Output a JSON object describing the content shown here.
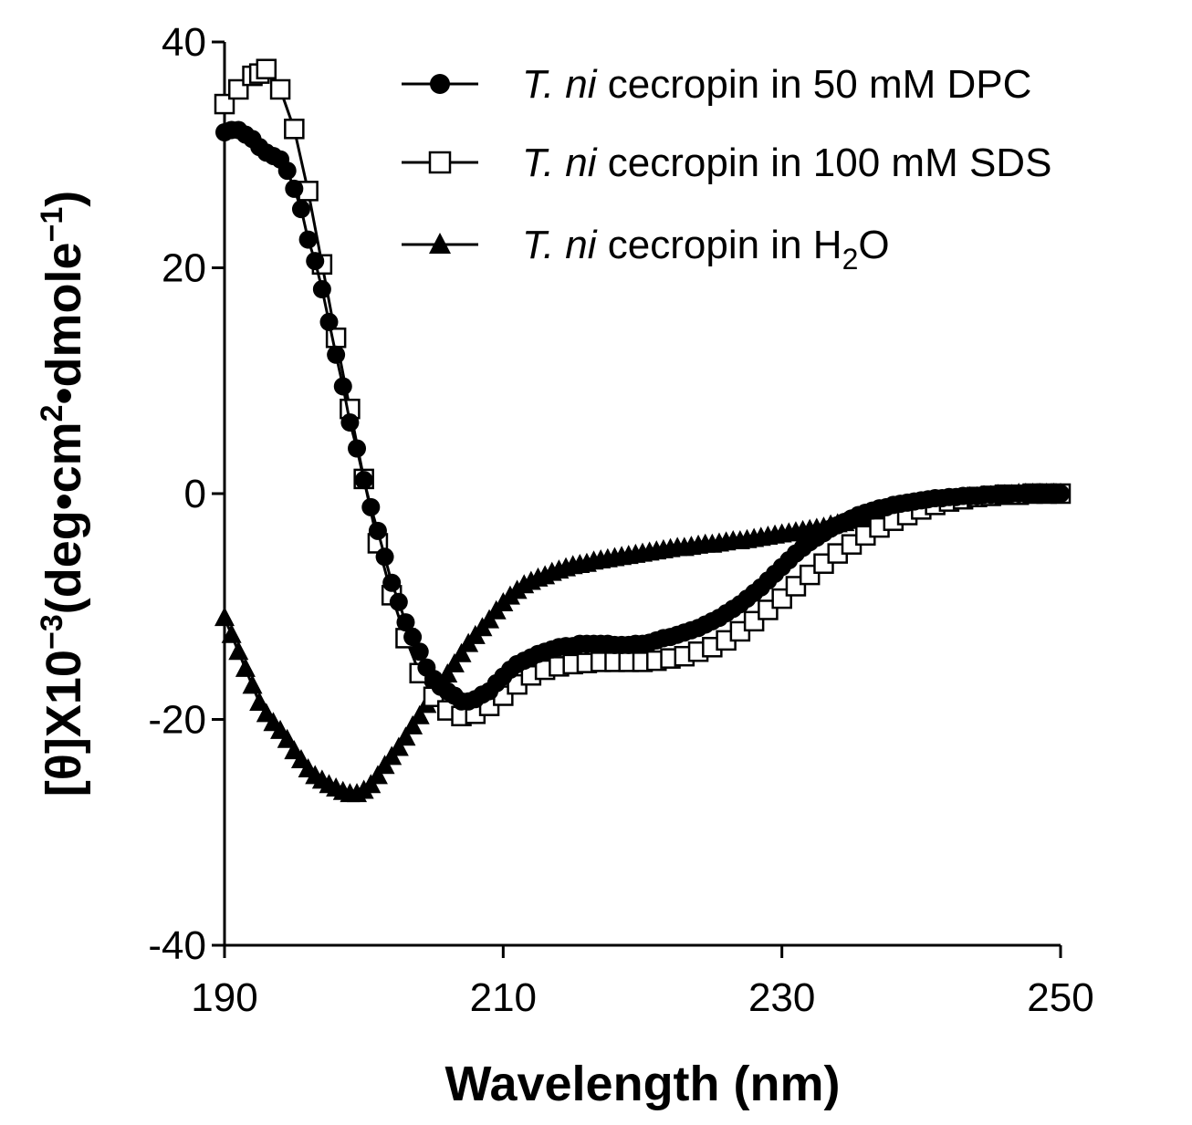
{
  "chart_data": {
    "type": "line",
    "title": "",
    "xlabel": "Wavelength (nm)",
    "ylabel_parts": {
      "prefix": "[θ]X10",
      "exp": "−3",
      "unit_open": "(deg•cm",
      "unit_exp": "2",
      "unit_mid": "•dmole",
      "unit_exp2": "−1",
      "unit_close": ")"
    },
    "xlim": [
      190,
      250
    ],
    "ylim": [
      -40,
      40
    ],
    "xticks": [
      190,
      210,
      230,
      250
    ],
    "xtick_labels": [
      "190",
      "210",
      "230",
      "250"
    ],
    "yticks": [
      -40,
      -20,
      0,
      20,
      40
    ],
    "ytick_labels": [
      "-40",
      "-20",
      "0",
      "20",
      "40"
    ],
    "grid": false,
    "legend_position": "top-right",
    "series": [
      {
        "name": "DPC",
        "legend_italic": "T. ni",
        "legend_text": " cecropin in 50 mM DPC",
        "marker": "filled-circle",
        "color": "#000000",
        "x": [
          190,
          190.5,
          191,
          191.5,
          192,
          192.5,
          193,
          193.5,
          194,
          194.5,
          195,
          195.5,
          196,
          196.5,
          197,
          197.5,
          198,
          198.5,
          199,
          199.5,
          200,
          200.5,
          201,
          201.5,
          202,
          202.5,
          203,
          203.5,
          204,
          204.5,
          205,
          205.5,
          206,
          206.5,
          207,
          207.5,
          208,
          208.5,
          209,
          209.5,
          210,
          210.5,
          211,
          211.5,
          212,
          212.5,
          213,
          213.5,
          214,
          214.5,
          215,
          215.5,
          216,
          216.5,
          217,
          217.5,
          218,
          218.5,
          219,
          219.5,
          220,
          220.5,
          221,
          221.5,
          222,
          222.5,
          223,
          223.5,
          224,
          224.5,
          225,
          225.5,
          226,
          226.5,
          227,
          227.5,
          228,
          228.5,
          229,
          229.5,
          230,
          230.5,
          231,
          231.5,
          232,
          232.5,
          233,
          233.5,
          234,
          234.5,
          235,
          235.5,
          236,
          236.5,
          237,
          237.5,
          238,
          238.5,
          239,
          239.5,
          240,
          240.5,
          241,
          241.5,
          242,
          242.5,
          243,
          243.5,
          244,
          244.5,
          245,
          245.5,
          246,
          246.5,
          247,
          247.5,
          248,
          248.5,
          249,
          249.5,
          250
        ],
        "y": [
          32,
          32.2,
          32.2,
          31.8,
          31.4,
          30.7,
          30.2,
          29.9,
          29.6,
          28.6,
          27,
          25.2,
          22.5,
          20.6,
          18.1,
          15.2,
          12.3,
          9.5,
          6.3,
          4,
          1.2,
          -1.2,
          -3.3,
          -5.6,
          -7.9,
          -9.6,
          -11.4,
          -12.7,
          -14,
          -15.4,
          -16.4,
          -17.1,
          -17.5,
          -17.9,
          -18.4,
          -18.4,
          -18.2,
          -17.8,
          -17.5,
          -16.8,
          -16.2,
          -15.6,
          -15.1,
          -14.8,
          -14.5,
          -14.2,
          -14,
          -13.8,
          -13.6,
          -13.5,
          -13.5,
          -13.3,
          -13.3,
          -13.3,
          -13.3,
          -13.3,
          -13.4,
          -13.4,
          -13.4,
          -13.3,
          -13.3,
          -13.2,
          -13,
          -12.8,
          -12.7,
          -12.5,
          -12.3,
          -12.1,
          -11.9,
          -11.6,
          -11.3,
          -11,
          -10.6,
          -10.2,
          -9.8,
          -9.3,
          -8.8,
          -8.3,
          -7.7,
          -7.1,
          -6.5,
          -5.9,
          -5.3,
          -4.8,
          -4.3,
          -3.9,
          -3.5,
          -3.1,
          -2.8,
          -2.5,
          -2.2,
          -1.9,
          -1.7,
          -1.5,
          -1.3,
          -1.2,
          -1,
          -0.9,
          -0.8,
          -0.7,
          -0.6,
          -0.5,
          -0.4,
          -0.4,
          -0.3,
          -0.3,
          -0.2,
          -0.2,
          -0.2,
          -0.1,
          -0.1,
          -0.1,
          -0.1,
          0,
          0,
          0,
          0,
          0,
          0,
          0,
          0
        ]
      },
      {
        "name": "SDS",
        "legend_italic": "T. ni",
        "legend_text": " cecropin in 100 mM SDS",
        "marker": "open-square",
        "color": "#000000",
        "x": [
          190,
          191,
          192,
          192.5,
          193,
          194,
          195,
          196,
          197,
          198,
          199,
          200,
          201,
          202,
          203,
          204,
          205,
          206,
          207,
          208,
          209,
          210,
          211,
          212,
          213,
          214,
          215,
          216,
          217,
          218,
          219,
          220,
          221,
          222,
          223,
          224,
          225,
          226,
          227,
          228,
          229,
          230,
          231,
          232,
          233,
          234,
          235,
          236,
          237,
          238,
          239,
          240,
          241,
          242,
          243,
          244,
          245,
          246,
          247,
          248,
          249,
          250
        ],
        "y": [
          34.5,
          35.8,
          37,
          37.2,
          37.6,
          35.8,
          32.3,
          26.8,
          20.3,
          13.8,
          7.5,
          1.3,
          -4.4,
          -9,
          -12.8,
          -15.9,
          -18,
          -19.2,
          -19.7,
          -19.5,
          -18.8,
          -17.9,
          -16.9,
          -16.1,
          -15.6,
          -15.3,
          -15.1,
          -15,
          -14.9,
          -14.9,
          -14.9,
          -14.9,
          -14.8,
          -14.6,
          -14.4,
          -14,
          -13.6,
          -13,
          -12.2,
          -11.3,
          -10.3,
          -9.3,
          -8.2,
          -7.2,
          -6.2,
          -5.3,
          -4.5,
          -3.7,
          -3,
          -2.4,
          -1.9,
          -1.4,
          -1,
          -0.7,
          -0.5,
          -0.3,
          -0.2,
          -0.1,
          -0.1,
          0,
          0,
          0
        ]
      },
      {
        "name": "H2O",
        "legend_italic": "T. ni",
        "legend_text": " cecropin in H",
        "legend_sub": "2",
        "legend_tail": "O",
        "marker": "filled-triangle",
        "color": "#000000",
        "x": [
          190,
          190.5,
          191,
          191.5,
          192,
          192.5,
          193,
          193.5,
          194,
          194.5,
          195,
          195.5,
          196,
          196.5,
          197,
          197.5,
          198,
          198.5,
          199,
          199.5,
          200,
          200.5,
          201,
          201.5,
          202,
          202.5,
          203,
          203.5,
          204,
          204.5,
          205,
          205.5,
          206,
          206.5,
          207,
          207.5,
          208,
          208.5,
          209,
          209.5,
          210,
          210.5,
          211,
          211.5,
          212,
          212.5,
          213,
          213.5,
          214,
          214.5,
          215,
          215.5,
          216,
          216.5,
          217,
          217.5,
          218,
          218.5,
          219,
          219.5,
          220,
          220.5,
          221,
          221.5,
          222,
          222.5,
          223,
          223.5,
          224,
          224.5,
          225,
          225.5,
          226,
          226.5,
          227,
          227.5,
          228,
          228.5,
          229,
          229.5,
          230,
          230.5,
          231,
          231.5,
          232,
          232.5,
          233,
          233.5,
          234,
          234.5,
          235,
          235.5,
          236,
          236.5,
          237,
          237.5,
          238,
          238.5,
          239,
          239.5,
          240,
          240.5,
          241,
          241.5,
          242,
          242.5,
          243,
          243.5,
          244,
          244.5,
          245,
          245.5,
          246,
          246.5,
          247,
          247.5,
          248,
          248.5,
          249,
          249.5,
          250
        ],
        "y": [
          -11,
          -12.5,
          -14,
          -15.5,
          -17,
          -18.5,
          -19.5,
          -20.3,
          -21,
          -21.8,
          -22.8,
          -23.6,
          -24.4,
          -25,
          -25.4,
          -25.8,
          -26.1,
          -26.4,
          -26.6,
          -26.6,
          -26.3,
          -25.8,
          -25,
          -24.1,
          -23.3,
          -22.5,
          -21.6,
          -20.6,
          -19.7,
          -18.7,
          -17.5,
          -16.8,
          -16,
          -15.1,
          -14.2,
          -13.3,
          -12.6,
          -11.9,
          -11.2,
          -10.4,
          -9.7,
          -9.1,
          -8.6,
          -8.1,
          -7.8,
          -7.5,
          -7.3,
          -7,
          -6.8,
          -6.6,
          -6.4,
          -6.3,
          -6.2,
          -6,
          -5.9,
          -5.8,
          -5.7,
          -5.6,
          -5.5,
          -5.4,
          -5.3,
          -5.2,
          -5.1,
          -5,
          -4.9,
          -4.8,
          -4.8,
          -4.7,
          -4.6,
          -4.5,
          -4.5,
          -4.4,
          -4.3,
          -4.2,
          -4.2,
          -4.1,
          -4,
          -3.9,
          -3.8,
          -3.7,
          -3.6,
          -3.5,
          -3.4,
          -3.3,
          -3.2,
          -3.1,
          -3,
          -2.8,
          -2.7,
          -2.6,
          -2.4,
          -2.3,
          -2.1,
          -2,
          -1.8,
          -1.7,
          -1.5,
          -1.4,
          -1.2,
          -1.1,
          -1,
          -0.9,
          -0.8,
          -0.7,
          -0.6,
          -0.5,
          -0.4,
          -0.3,
          -0.3,
          -0.2,
          -0.2,
          -0.1,
          -0.1,
          -0.1,
          0,
          0,
          0,
          0,
          0,
          0,
          0
        ]
      }
    ]
  }
}
